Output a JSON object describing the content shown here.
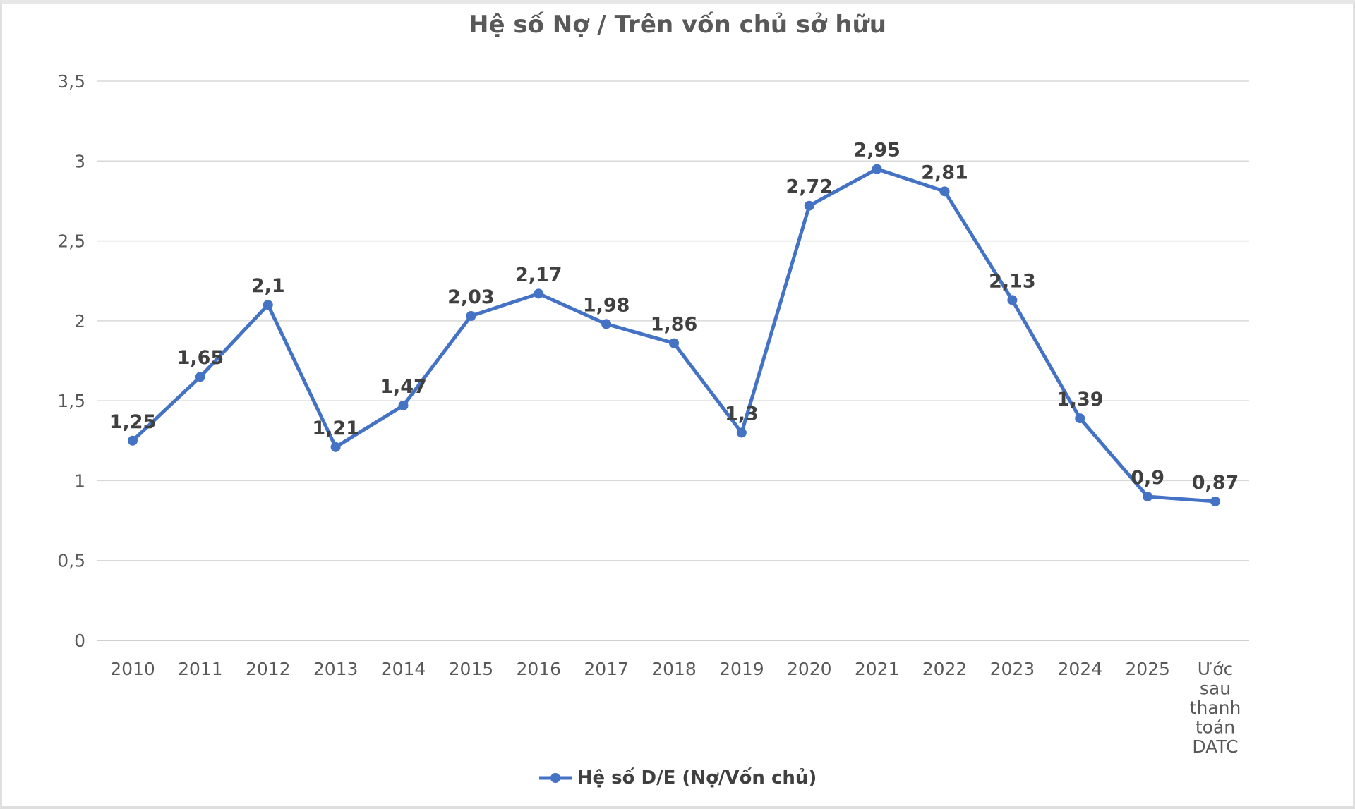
{
  "chart_data": {
    "type": "line",
    "title": "Hệ số Nợ / Trên vốn chủ sở hữu",
    "categories": [
      "2010",
      "2011",
      "2012",
      "2013",
      "2014",
      "2015",
      "2016",
      "2017",
      "2018",
      "2019",
      "2020",
      "2021",
      "2022",
      "2023",
      "2024",
      "2025",
      "Ước sau thanh toán DATC"
    ],
    "series": [
      {
        "name": "Hệ số D/E (Nợ/Vốn chủ)",
        "values": [
          1.25,
          1.65,
          2.1,
          1.21,
          1.47,
          2.03,
          2.17,
          1.98,
          1.86,
          1.3,
          2.72,
          2.95,
          2.81,
          2.13,
          1.39,
          0.9,
          0.87
        ],
        "data_labels": [
          "1,25",
          "1,65",
          "2,1",
          "1,21",
          "1,47",
          "2,03",
          "2,17",
          "1,98",
          "1,86",
          "1,3",
          "2,72",
          "2,95",
          "2,81",
          "2,13",
          "1,39",
          "0,9",
          "0,87"
        ],
        "color": "#4472C4"
      }
    ],
    "y_axis": {
      "min": 0,
      "max": 3.5,
      "step": 0.5,
      "tick_labels": [
        "0",
        "0,5",
        "1",
        "1,5",
        "2",
        "2,5",
        "3",
        "3,5"
      ]
    },
    "x_axis": {
      "label_wrap_last": true
    },
    "grid": true,
    "legend": {
      "position": "bottom",
      "label": "Hệ số D/E (Nợ/Vốn chủ)"
    },
    "colors": {
      "gridline": "#D9D9D9",
      "axis_line": "#BFBFBF",
      "tick_text": "#595959",
      "data_label_text": "#404040",
      "title_text": "#595959",
      "series_line": "#4472C4"
    }
  }
}
